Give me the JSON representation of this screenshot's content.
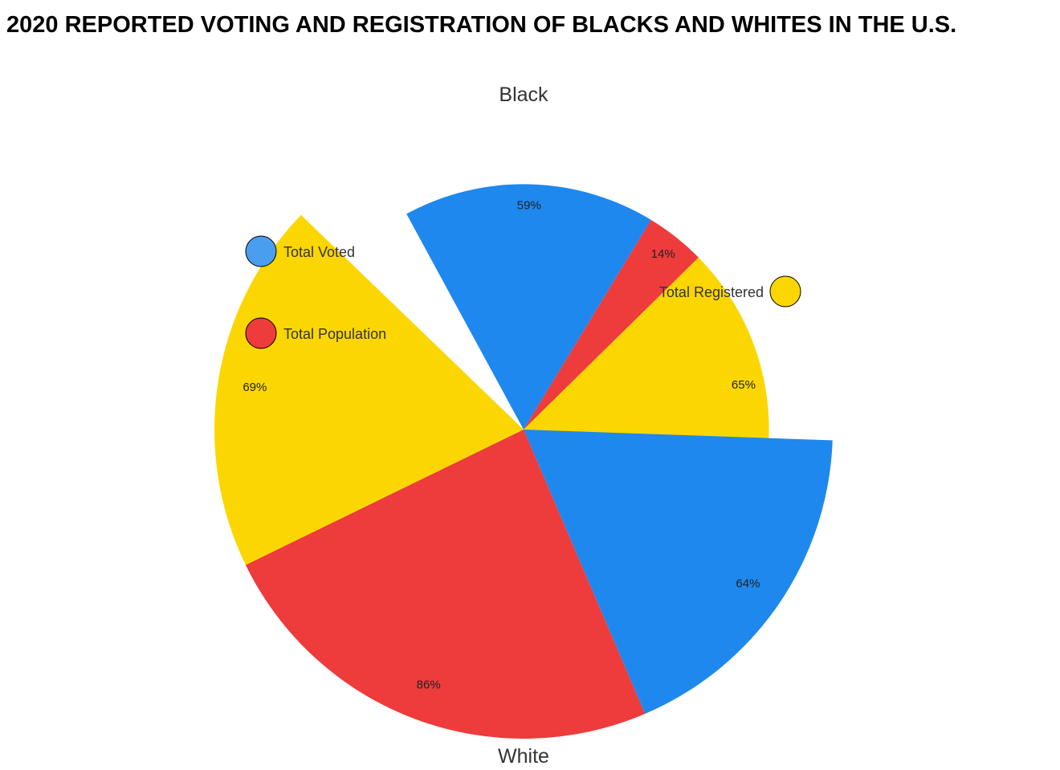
{
  "chart_data": {
    "type": "pie",
    "title": "2020 REPORTED VOTING AND REGISTRATION OF BLACKS AND WHITES IN THE U.S.",
    "groups": [
      {
        "name": "Black",
        "slices": [
          {
            "metric": "Total Voted",
            "value": 59,
            "label": "59%"
          },
          {
            "metric": "Total Population",
            "value": 14,
            "label": "14%"
          },
          {
            "metric": "Total Registered",
            "value": 65,
            "label": "65%"
          }
        ]
      },
      {
        "name": "White",
        "slices": [
          {
            "metric": "Total Voted",
            "value": 64,
            "label": "64%"
          },
          {
            "metric": "Total Population",
            "value": 86,
            "label": "86%"
          },
          {
            "metric": "Total Registered",
            "value": 69,
            "label": "69%"
          }
        ]
      }
    ],
    "legend": [
      {
        "name": "Total Voted",
        "color": "#4a9ef0"
      },
      {
        "name": "Total Population",
        "color": "#ee3b3b"
      },
      {
        "name": "Total Registered",
        "color": "#fcd600"
      }
    ],
    "colors": {
      "Total Voted": "#1e88ee",
      "Total Population": "#ee3b3b",
      "Total Registered": "#fcd600"
    }
  }
}
